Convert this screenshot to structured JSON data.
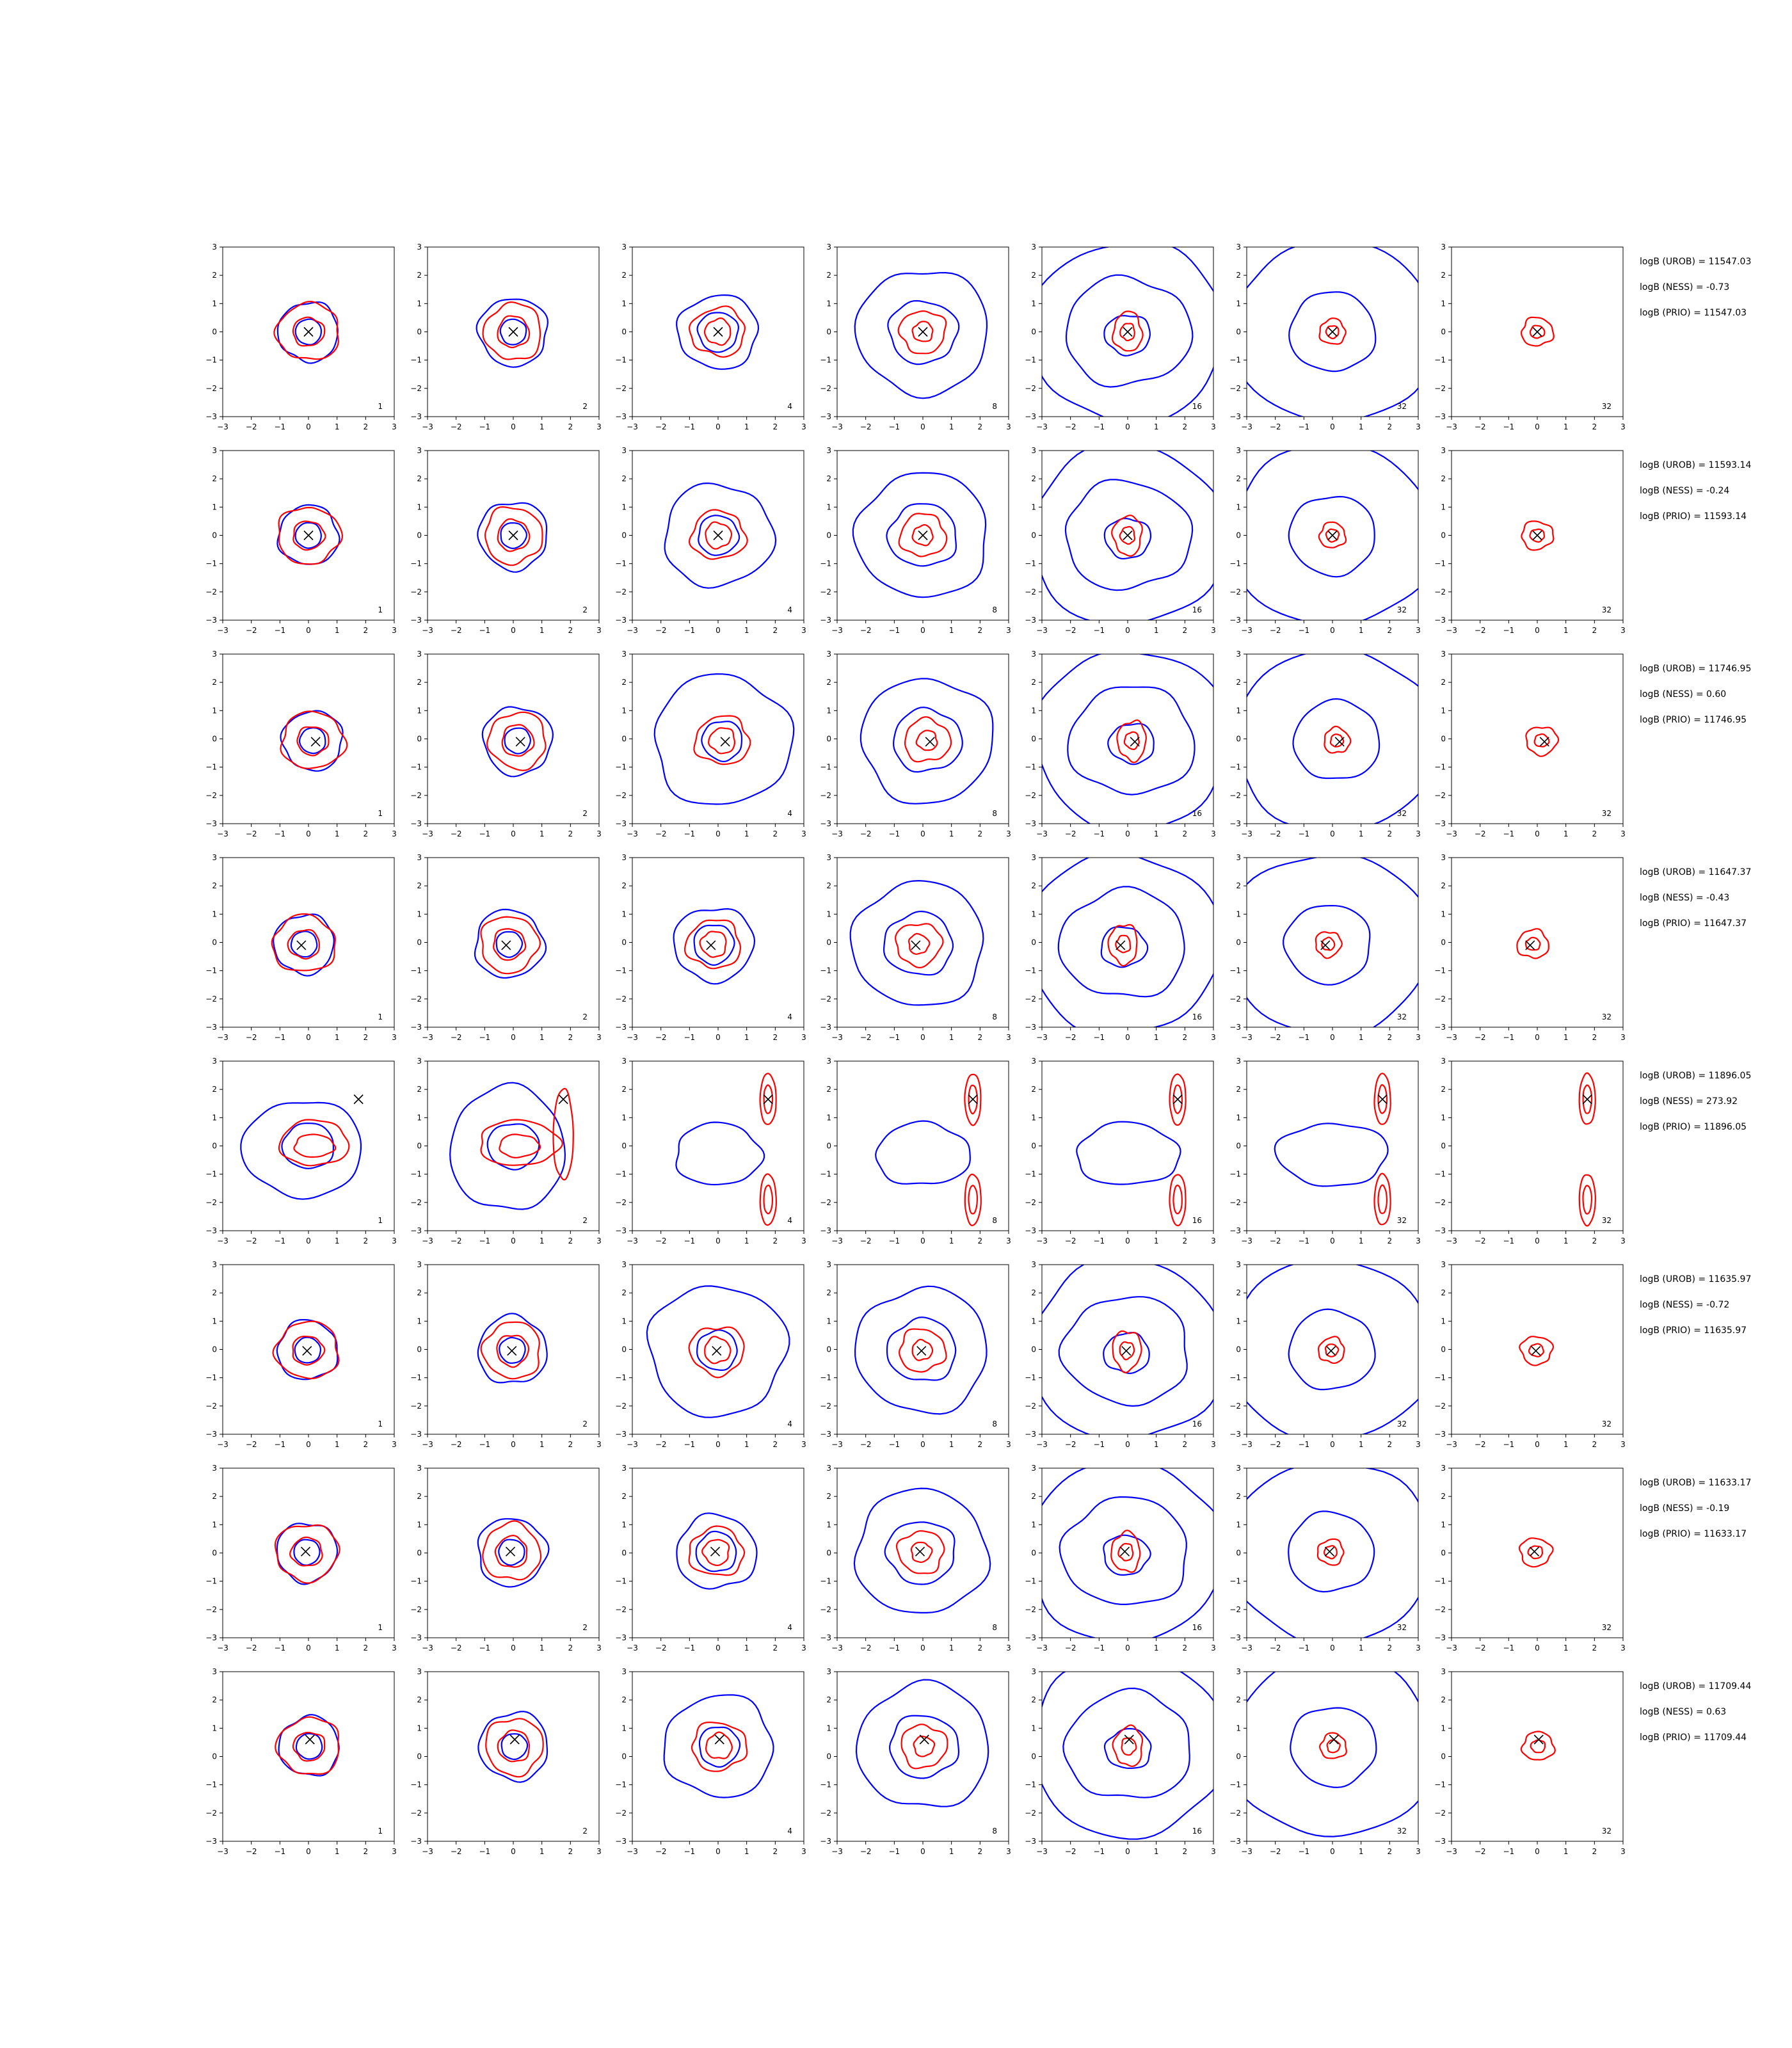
{
  "chart_data": {
    "type": "contour",
    "grid": {
      "rows": 8,
      "cols": 7
    },
    "xlim": [
      -3,
      3
    ],
    "ylim": [
      -3,
      3
    ],
    "xticks": [
      -3,
      -2,
      -1,
      0,
      1,
      2,
      3
    ],
    "yticks": [
      -3,
      -2,
      -1,
      0,
      1,
      2,
      3
    ],
    "tick_labels": [
      "−3",
      "−2",
      "−1",
      "0",
      "1",
      "2",
      "3"
    ],
    "grid_lines": false,
    "colors": {
      "series_a": "#0000ff",
      "series_b": "#ff0000",
      "marker": "#000000"
    },
    "column_labels": [
      "1",
      "2",
      "4",
      "8",
      "16",
      "32",
      "32"
    ],
    "rows": [
      {
        "marker": [
          0,
          0
        ],
        "annotations": [
          "logB (UROB) = 11547.03",
          "logB (NESS) = -0.73",
          "logB (PRIO) = 11547.03"
        ]
      },
      {
        "marker": [
          0,
          0
        ],
        "annotations": [
          "logB (UROB) = 11593.14",
          "logB (NESS) = -0.24",
          "logB (PRIO) = 11593.14"
        ]
      },
      {
        "marker": [
          0.25,
          -0.1
        ],
        "annotations": [
          "logB (UROB) = 11746.95",
          "logB (NESS) = 0.60",
          "logB (PRIO) = 11746.95"
        ]
      },
      {
        "marker": [
          -0.25,
          -0.1
        ],
        "annotations": [
          "logB (UROB) = 11647.37",
          "logB (NESS) = -0.43",
          "logB (PRIO) = 11647.37"
        ]
      },
      {
        "marker": [
          1.75,
          1.65
        ],
        "annotations": [
          "logB (UROB) = 11896.05",
          "logB (NESS) = 273.92",
          "logB (PRIO) = 11896.05"
        ]
      },
      {
        "marker": [
          -0.05,
          -0.05
        ],
        "annotations": [
          "logB (UROB) = 11635.97",
          "logB (NESS) = -0.72",
          "logB (PRIO) = 11635.97"
        ]
      },
      {
        "marker": [
          -0.1,
          0.05
        ],
        "annotations": [
          "logB (UROB) = 11633.17",
          "logB (NESS) = -0.19",
          "logB (PRIO) = 11633.17"
        ]
      },
      {
        "marker": [
          0.05,
          0.6
        ],
        "annotations": [
          "logB (UROB) = 11709.44",
          "logB (NESS) = 0.63",
          "logB (PRIO) = 11709.44"
        ]
      }
    ]
  }
}
